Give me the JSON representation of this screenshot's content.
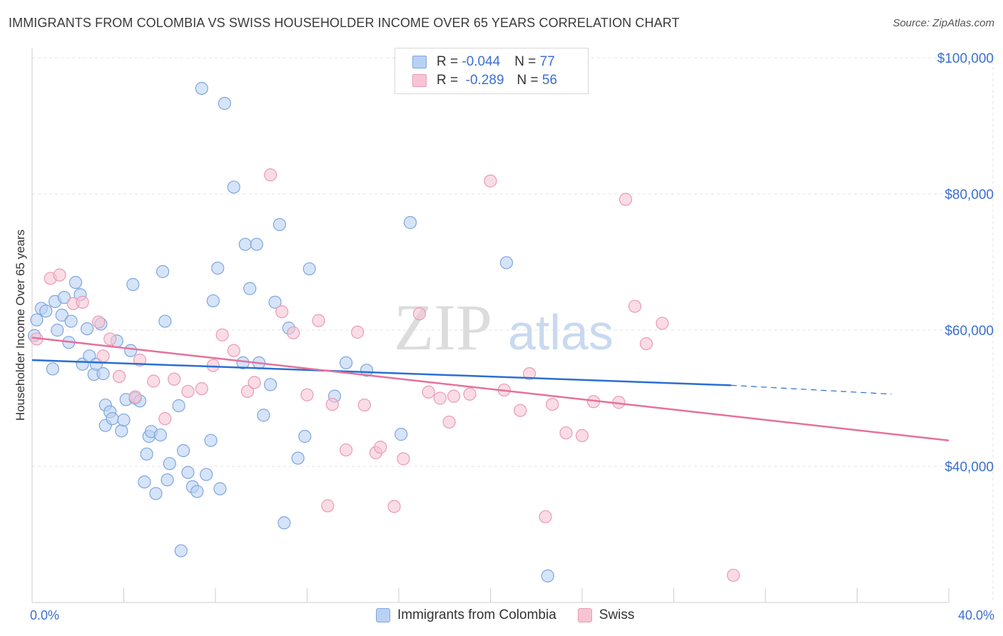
{
  "header": {
    "title": "IMMIGRANTS FROM COLOMBIA VS SWISS HOUSEHOLDER INCOME OVER 65 YEARS CORRELATION CHART",
    "source": "Source: ZipAtlas.com"
  },
  "legend": {
    "rows": [
      {
        "r_label": "R = ",
        "r_value": "-0.044",
        "n_label": "N = ",
        "n_value": "77"
      },
      {
        "r_label": "R = ",
        "r_value": " -0.289",
        "n_label": "N = ",
        "n_value": "56"
      }
    ]
  },
  "watermark": {
    "zip": "ZIP",
    "atlas": "atlas"
  },
  "colors": {
    "blue_fill": "#b9d2f3",
    "blue_stroke": "#7fa6de",
    "blue_line": "#2a6fd1",
    "pink_fill": "#f7c4d4",
    "pink_stroke": "#e99bb6",
    "pink_line": "#e5719b",
    "axis_text": "#3b6fd1",
    "grid": "#e3e3e3"
  },
  "chart_data": {
    "type": "scatter",
    "title": "IMMIGRANTS FROM COLOMBIA VS SWISS HOUSEHOLDER INCOME OVER 65 YEARS CORRELATION CHART",
    "xlabel": "",
    "ylabel": "Householder Income Over 65 years",
    "xlim": [
      0,
      40
    ],
    "ylim": [
      20000,
      101000
    ],
    "x_tick_labels": [
      "0.0%",
      "40.0%"
    ],
    "y_ticks": [
      40000,
      60000,
      80000,
      100000
    ],
    "y_tick_labels": [
      "$40,000",
      "$60,000",
      "$80,000",
      "$100,000"
    ],
    "grid": true,
    "series": [
      {
        "name": "Immigrants from Colombia",
        "color": "#b9d2f3",
        "points": [
          [
            0.1,
            59.2
          ],
          [
            0.2,
            61.5
          ],
          [
            0.4,
            63.2
          ],
          [
            0.6,
            62.8
          ],
          [
            0.9,
            54.3
          ],
          [
            1.0,
            64.2
          ],
          [
            1.1,
            60.0
          ],
          [
            1.3,
            62.2
          ],
          [
            1.4,
            64.8
          ],
          [
            1.6,
            58.2
          ],
          [
            1.7,
            61.3
          ],
          [
            1.9,
            67.0
          ],
          [
            2.1,
            65.2
          ],
          [
            2.2,
            55.0
          ],
          [
            2.4,
            60.2
          ],
          [
            2.5,
            56.2
          ],
          [
            2.7,
            53.5
          ],
          [
            2.8,
            55.0
          ],
          [
            3.0,
            60.9
          ],
          [
            3.2,
            46.0
          ],
          [
            3.2,
            49.0
          ],
          [
            3.4,
            48.0
          ],
          [
            3.5,
            47.0
          ],
          [
            3.7,
            58.4
          ],
          [
            3.9,
            45.2
          ],
          [
            4.0,
            46.8
          ],
          [
            4.1,
            49.8
          ],
          [
            4.3,
            57.0
          ],
          [
            4.4,
            66.7
          ],
          [
            4.5,
            50.0
          ],
          [
            4.7,
            49.6
          ],
          [
            4.9,
            37.7
          ],
          [
            5.0,
            41.8
          ],
          [
            5.1,
            44.4
          ],
          [
            5.2,
            45.1
          ],
          [
            5.4,
            36.0
          ],
          [
            5.6,
            44.6
          ],
          [
            5.7,
            68.6
          ],
          [
            5.8,
            61.3
          ],
          [
            5.9,
            38.0
          ],
          [
            6.0,
            40.4
          ],
          [
            6.4,
            48.9
          ],
          [
            6.6,
            42.3
          ],
          [
            6.8,
            39.1
          ],
          [
            7.0,
            37.0
          ],
          [
            6.5,
            27.6
          ],
          [
            7.2,
            36.3
          ],
          [
            7.6,
            38.8
          ],
          [
            7.8,
            43.8
          ],
          [
            7.9,
            64.3
          ],
          [
            8.1,
            69.1
          ],
          [
            7.4,
            95.5
          ],
          [
            8.4,
            93.3
          ],
          [
            8.2,
            36.7
          ],
          [
            8.8,
            81.0
          ],
          [
            9.2,
            55.2
          ],
          [
            9.3,
            72.6
          ],
          [
            9.5,
            66.1
          ],
          [
            9.8,
            72.6
          ],
          [
            9.9,
            55.2
          ],
          [
            10.1,
            47.5
          ],
          [
            10.4,
            52.0
          ],
          [
            10.6,
            64.1
          ],
          [
            10.8,
            75.5
          ],
          [
            11.2,
            60.3
          ],
          [
            11.0,
            31.7
          ],
          [
            11.6,
            41.2
          ],
          [
            11.9,
            44.4
          ],
          [
            12.1,
            69.0
          ],
          [
            13.2,
            50.3
          ],
          [
            13.7,
            55.2
          ],
          [
            14.6,
            54.1
          ],
          [
            16.1,
            44.7
          ],
          [
            16.5,
            75.8
          ],
          [
            20.7,
            69.9
          ],
          [
            22.5,
            23.9
          ],
          [
            3.1,
            53.6
          ]
        ]
      },
      {
        "name": "Swiss",
        "color": "#f7c4d4",
        "points": [
          [
            0.2,
            58.7
          ],
          [
            0.8,
            67.6
          ],
          [
            1.2,
            68.1
          ],
          [
            1.8,
            63.9
          ],
          [
            2.2,
            64.1
          ],
          [
            2.9,
            61.2
          ],
          [
            3.1,
            56.2
          ],
          [
            3.4,
            58.7
          ],
          [
            3.8,
            53.2
          ],
          [
            4.5,
            50.2
          ],
          [
            4.7,
            55.6
          ],
          [
            5.3,
            52.5
          ],
          [
            5.8,
            47.0
          ],
          [
            6.2,
            52.8
          ],
          [
            6.8,
            51.0
          ],
          [
            7.4,
            51.4
          ],
          [
            7.9,
            54.8
          ],
          [
            8.3,
            59.3
          ],
          [
            8.8,
            57.0
          ],
          [
            9.4,
            51.0
          ],
          [
            9.7,
            52.3
          ],
          [
            10.4,
            82.8
          ],
          [
            10.9,
            62.7
          ],
          [
            11.4,
            59.6
          ],
          [
            12.0,
            50.5
          ],
          [
            12.5,
            61.4
          ],
          [
            12.9,
            34.2
          ],
          [
            13.1,
            49.1
          ],
          [
            13.7,
            42.4
          ],
          [
            14.2,
            59.7
          ],
          [
            14.5,
            49.0
          ],
          [
            15.0,
            42.0
          ],
          [
            15.2,
            42.8
          ],
          [
            15.8,
            34.1
          ],
          [
            16.2,
            41.1
          ],
          [
            16.9,
            62.4
          ],
          [
            17.3,
            50.9
          ],
          [
            17.8,
            50.0
          ],
          [
            18.2,
            46.5
          ],
          [
            18.4,
            50.3
          ],
          [
            19.1,
            50.6
          ],
          [
            20.0,
            81.9
          ],
          [
            20.6,
            51.2
          ],
          [
            21.3,
            48.2
          ],
          [
            21.7,
            53.6
          ],
          [
            22.4,
            32.6
          ],
          [
            22.7,
            49.1
          ],
          [
            23.3,
            44.9
          ],
          [
            24.0,
            44.5
          ],
          [
            24.5,
            49.5
          ],
          [
            25.6,
            49.4
          ],
          [
            25.9,
            79.2
          ],
          [
            26.3,
            63.5
          ],
          [
            26.8,
            58.0
          ],
          [
            27.5,
            61.0
          ],
          [
            30.6,
            24.0
          ]
        ]
      }
    ],
    "trend_lines": [
      {
        "series": "Immigrants from Colombia",
        "x": [
          0,
          30.5
        ],
        "y": [
          55.6,
          51.9
        ],
        "dashed_extension": [
          30.5,
          37.5,
          51.9,
          50.6
        ]
      },
      {
        "series": "Swiss",
        "x": [
          0,
          40
        ],
        "y": [
          58.9,
          43.8
        ]
      }
    ]
  },
  "bottom_legend": {
    "items": [
      {
        "label": "Immigrants from Colombia"
      },
      {
        "label": "Swiss"
      }
    ]
  }
}
